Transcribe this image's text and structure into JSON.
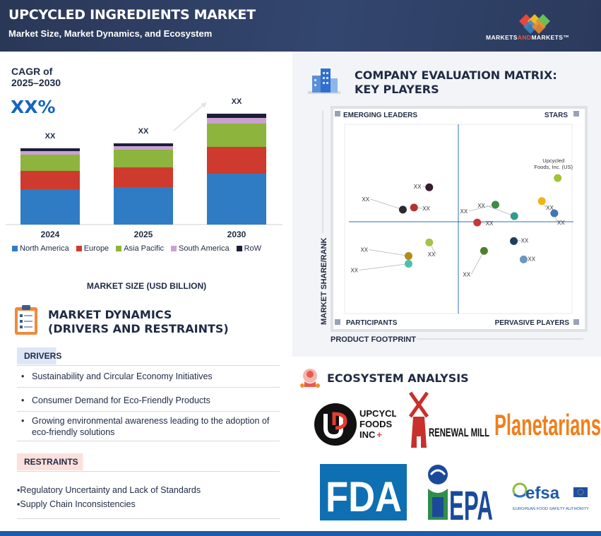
{
  "header": {
    "title": "UPCYCLED INGREDIENTS MARKET",
    "subtitle": "Market Size, Market Dynamics, and Ecosystem",
    "brand": {
      "prefix": "MARKETS",
      "and": "AND",
      "suffix": "MARKETS™"
    }
  },
  "cagr": {
    "label": "CAGR of\n2025–2030",
    "value": "XX%"
  },
  "chart_data": {
    "type": "bar",
    "stacked": true,
    "xlabel": "MARKET SIZE (USD BILLION)",
    "categories": [
      "2024",
      "2025",
      "2030"
    ],
    "data_labels": [
      "XX",
      "XX",
      "XX"
    ],
    "series": [
      {
        "name": "North America",
        "color": "#2f7cc4",
        "values": [
          50,
          53,
          72
        ]
      },
      {
        "name": "Europe",
        "color": "#cf3a2f",
        "values": [
          26,
          28,
          38
        ]
      },
      {
        "name": "Asia Pacific",
        "color": "#8db43d",
        "values": [
          23,
          25,
          33
        ]
      },
      {
        "name": "South America",
        "color": "#c9a2d1",
        "values": [
          5,
          5,
          8
        ]
      },
      {
        "name": "RoW",
        "color": "#1d1d3a",
        "values": [
          4,
          4,
          6
        ]
      }
    ],
    "ylim": [
      0,
      200
    ],
    "grid": false,
    "legend_position": "bottom"
  },
  "dynamics": {
    "title": "MARKET DYNAMICS\n(DRIVERS AND RESTRAINTS)",
    "drivers_label": "DRIVERS",
    "drivers": [
      "Sustainability and Circular Economy Initiatives",
      "Consumer Demand for Eco-Friendly Products",
      "Growing environmental awareness leading to the adoption of eco-friendly solutions"
    ],
    "restraints_label": "RESTRAINTS",
    "restraints": [
      "▪Regulatory Uncertainty and Lack of Standards",
      "▪Supply Chain Inconsistencies"
    ]
  },
  "matrix": {
    "title": "COMPANY EVALUATION MATRIX:\nKEY PLAYERS",
    "quadrants": {
      "top_left": "EMERGING LEADERS",
      "top_right": "STARS",
      "bottom_left": "PARTICIPANTS",
      "bottom_right": "PERVASIVE PLAYERS"
    },
    "x_axis": "PRODUCT FOOTPRINT",
    "y_axis": "MARKET SHARE/RANK",
    "highlight_label": "Upcycled\nFoods, Inc. (US)",
    "placeholder_label": "XX",
    "companies": [
      {
        "x": 0.937,
        "y": 0.716,
        "color": "#a4c339",
        "named": true
      },
      {
        "x": 0.372,
        "y": 0.667,
        "color": "#3a1a30"
      },
      {
        "x": 0.256,
        "y": 0.549,
        "color": "#2a2a2a"
      },
      {
        "x": 0.305,
        "y": 0.56,
        "color": "#b23432"
      },
      {
        "x": 0.663,
        "y": 0.575,
        "color": "#3d8b46"
      },
      {
        "x": 0.867,
        "y": 0.594,
        "color": "#f1b417"
      },
      {
        "x": 0.922,
        "y": 0.53,
        "color": "#3b78b6"
      },
      {
        "x": 0.583,
        "y": 0.481,
        "color": "#c23a38"
      },
      {
        "x": 0.746,
        "y": 0.515,
        "color": "#2e9e8a"
      },
      {
        "x": 0.372,
        "y": 0.376,
        "color": "#a6c04b"
      },
      {
        "x": 0.613,
        "y": 0.331,
        "color": "#4f7d2f"
      },
      {
        "x": 0.744,
        "y": 0.383,
        "color": "#1f3d5e"
      },
      {
        "x": 0.787,
        "y": 0.286,
        "color": "#6b97c6"
      },
      {
        "x": 0.281,
        "y": 0.304,
        "color": "#b38a1c"
      },
      {
        "x": 0.281,
        "y": 0.263,
        "color": "#4cc0a9"
      }
    ]
  },
  "ecosystem": {
    "title": "ECOSYSTEM ANALYSIS",
    "logos": {
      "upcycled_foods": "UPCYCLED\nFOODS\nINC",
      "renewal_mill": "RENEWAL MILL",
      "planetarians": "Planetarians",
      "fda": "FDA",
      "epa": "EPA",
      "efsa": "efsa",
      "efsa_sub": "EUROPEAN FOOD SAFETY AUTHORITY"
    }
  }
}
